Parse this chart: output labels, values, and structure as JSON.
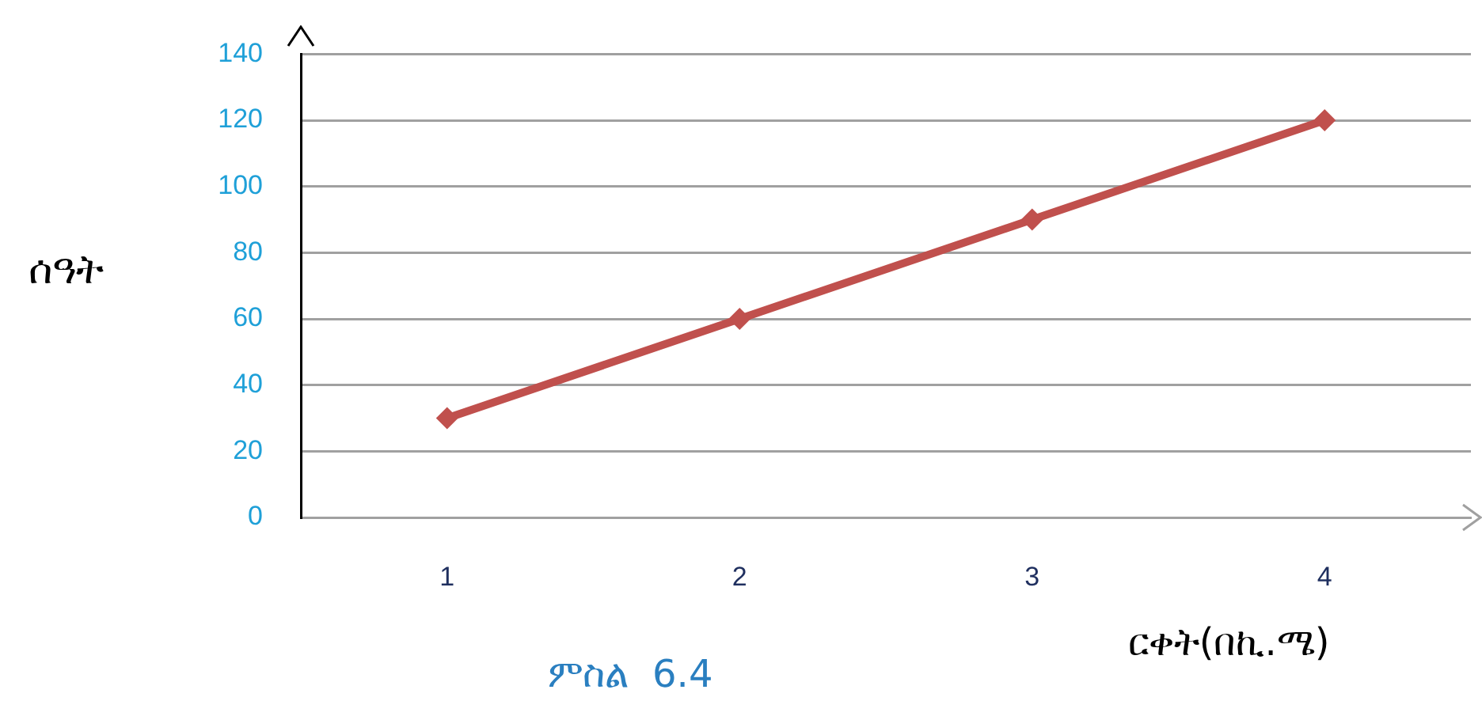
{
  "chart_data": {
    "type": "line",
    "xlabel": "ርቀት(በኪ.ሜ)",
    "ylabel": "ሰዓት",
    "annotations": [
      "ምስል  6.4"
    ],
    "categories": [
      "1",
      "2",
      "3",
      "4"
    ],
    "series": [
      {
        "color": "#c0504d",
        "values": [
          30,
          60,
          90,
          120
        ]
      }
    ],
    "ylim": [
      0,
      140
    ],
    "yticks": [
      0,
      20,
      40,
      60,
      80,
      100,
      120,
      140
    ],
    "grid": "y",
    "legend": false,
    "marker": "diamond",
    "line_style": "solid"
  }
}
